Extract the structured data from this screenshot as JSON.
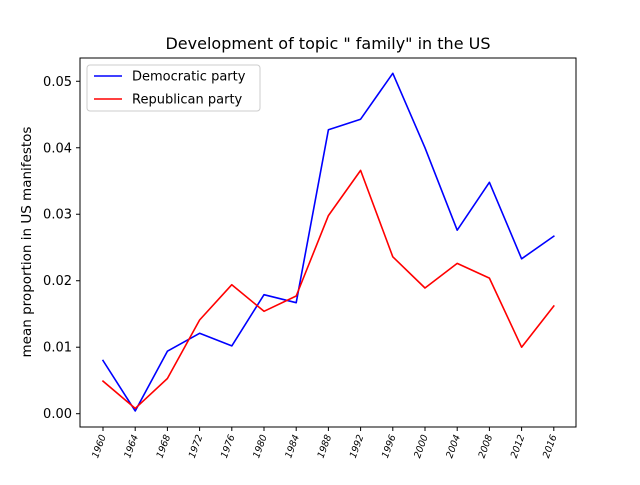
{
  "chart_data": {
    "type": "line",
    "title": "Development of topic \" family\" in the US",
    "xlabel": "",
    "ylabel": "mean proportion in US manifestos",
    "categories": [
      "1960",
      "1964",
      "1968",
      "1972",
      "1976",
      "1980",
      "1984",
      "1988",
      "1992",
      "1996",
      "2000",
      "2004",
      "2008",
      "2012",
      "2016"
    ],
    "ylim": [
      -0.002,
      0.0535
    ],
    "yticks": [
      0.0,
      0.01,
      0.02,
      0.03,
      0.04,
      0.05
    ],
    "ytick_labels": [
      "0.00",
      "0.01",
      "0.02",
      "0.03",
      "0.04",
      "0.05"
    ],
    "grid": false,
    "legend_position": "top-left",
    "series": [
      {
        "name": "Democratic party",
        "color": "#0000ff",
        "values": [
          0.008,
          0.0004,
          0.0094,
          0.0121,
          0.0102,
          0.0179,
          0.0167,
          0.0427,
          0.0443,
          0.0512,
          0.04,
          0.0276,
          0.0348,
          0.0233,
          0.0267
        ]
      },
      {
        "name": "Republican party",
        "color": "#ff0000",
        "values": [
          0.0049,
          0.0008,
          0.0053,
          0.0141,
          0.0194,
          0.0154,
          0.0177,
          0.0298,
          0.0366,
          0.0236,
          0.0189,
          0.0226,
          0.0204,
          0.01,
          0.0162
        ]
      }
    ]
  }
}
